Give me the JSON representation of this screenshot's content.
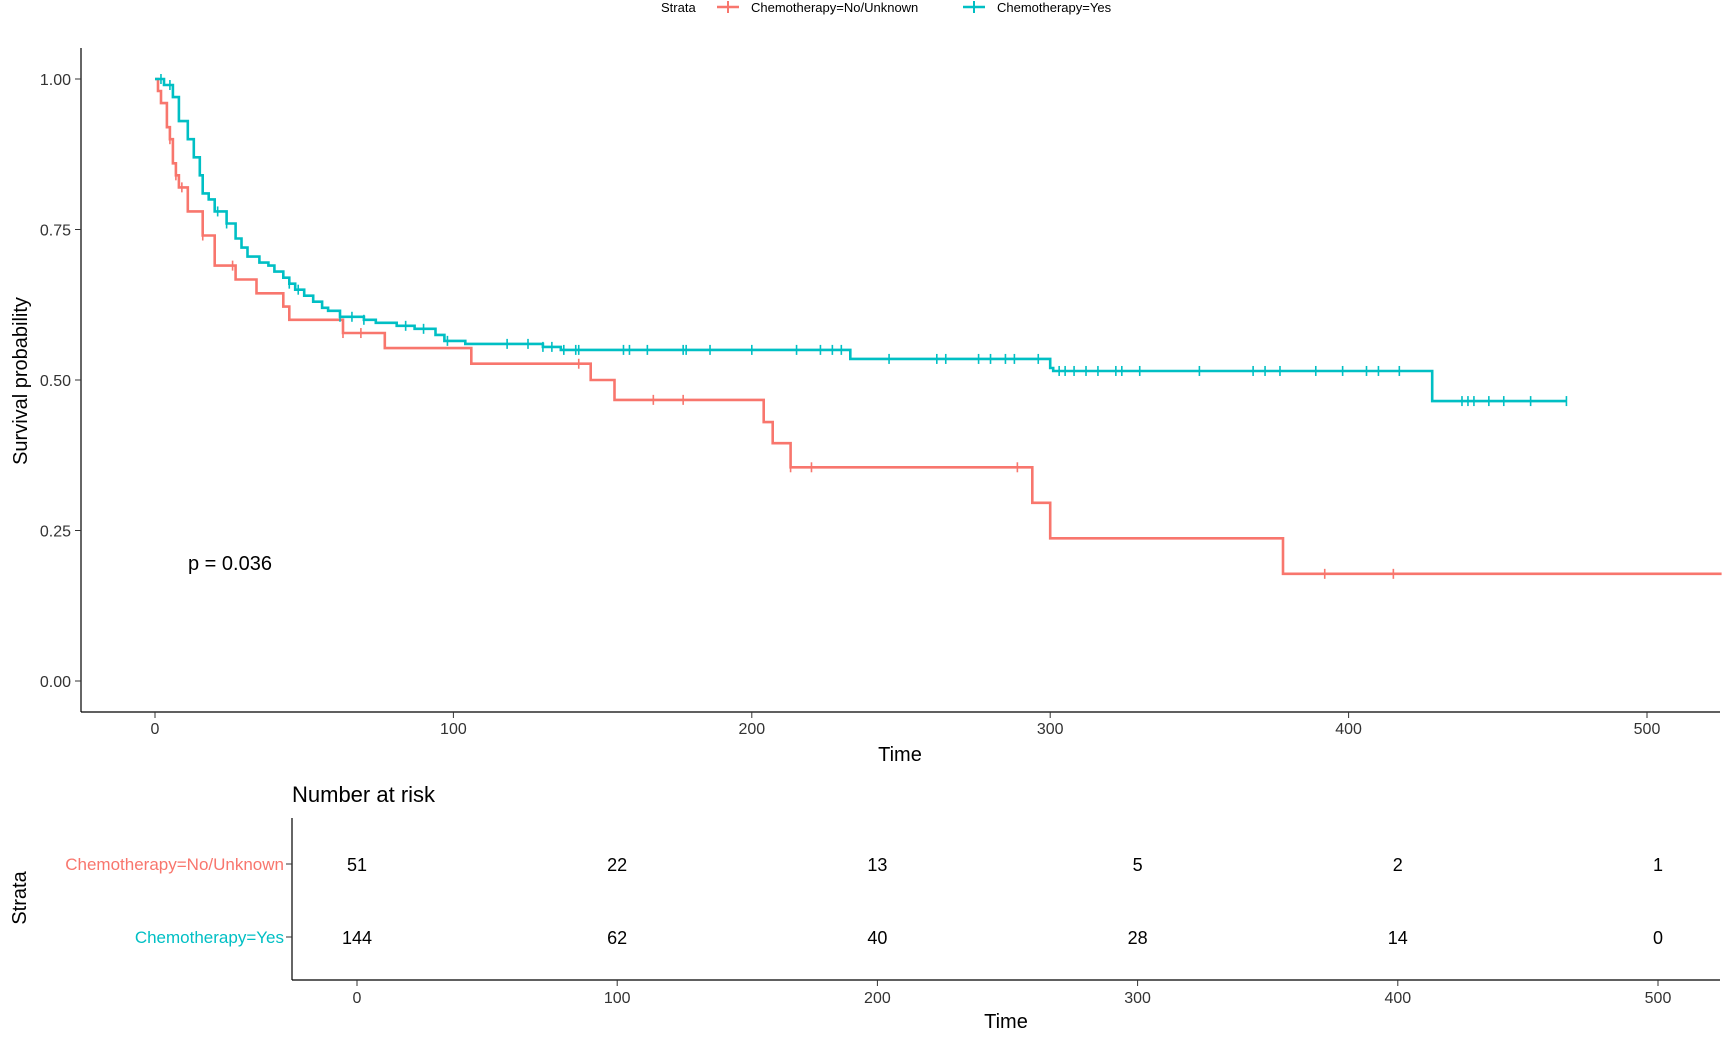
{
  "chart_data": {
    "type": "line",
    "subtype": "kaplan-meier",
    "legend": {
      "title": "Strata",
      "placement": "top-center",
      "entries": [
        "Chemotherapy=No/Unknown",
        "Chemotherapy=Yes"
      ]
    },
    "xlabel": "Time",
    "ylabel": "Survival probability",
    "xlim": [
      -25,
      525
    ],
    "ylim": [
      -0.05,
      1.05
    ],
    "x_ticks": [
      0,
      100,
      200,
      300,
      400,
      500
    ],
    "x_tick_labels": [
      "0",
      "100",
      "200",
      "300",
      "400",
      "500"
    ],
    "y_ticks": [
      0,
      0.25,
      0.5,
      0.75,
      1
    ],
    "y_tick_labels": [
      "0.00",
      "0.25",
      "0.50",
      "0.75",
      "1.00"
    ],
    "annotation": "p = 0.036",
    "series": [
      {
        "name": "Chemotherapy=No/Unknown",
        "color": "#F8766D",
        "steps": [
          [
            0,
            1.0
          ],
          [
            1,
            0.98
          ],
          [
            2,
            0.96
          ],
          [
            4,
            0.92
          ],
          [
            5,
            0.9
          ],
          [
            6,
            0.86
          ],
          [
            7,
            0.84
          ],
          [
            8,
            0.82
          ],
          [
            11,
            0.78
          ],
          [
            16,
            0.74
          ],
          [
            20,
            0.69
          ],
          [
            27,
            0.667
          ],
          [
            34,
            0.644
          ],
          [
            43,
            0.622
          ],
          [
            45,
            0.6
          ],
          [
            63,
            0.578
          ],
          [
            77,
            0.553
          ],
          [
            106,
            0.527
          ],
          [
            146,
            0.5
          ],
          [
            154,
            0.467
          ],
          [
            204,
            0.43
          ],
          [
            207,
            0.395
          ],
          [
            213,
            0.355
          ],
          [
            294,
            0.296
          ],
          [
            300,
            0.237
          ],
          [
            378,
            0.178
          ],
          [
            525,
            0.178
          ]
        ],
        "censor_times": [
          5,
          7,
          9,
          16,
          26,
          63,
          69,
          142,
          167,
          177,
          213,
          220,
          289,
          392,
          415
        ]
      },
      {
        "name": "Chemotherapy=Yes",
        "color": "#00BFC4",
        "steps": [
          [
            0,
            1.0
          ],
          [
            3,
            0.99
          ],
          [
            6,
            0.97
          ],
          [
            8,
            0.93
          ],
          [
            11,
            0.9
          ],
          [
            13,
            0.87
          ],
          [
            15,
            0.84
          ],
          [
            16,
            0.81
          ],
          [
            18,
            0.8
          ],
          [
            20,
            0.78
          ],
          [
            24,
            0.76
          ],
          [
            27,
            0.735
          ],
          [
            29,
            0.72
          ],
          [
            31,
            0.705
          ],
          [
            35,
            0.695
          ],
          [
            38,
            0.69
          ],
          [
            40,
            0.68
          ],
          [
            43,
            0.67
          ],
          [
            45,
            0.66
          ],
          [
            47,
            0.65
          ],
          [
            50,
            0.64
          ],
          [
            53,
            0.63
          ],
          [
            56,
            0.62
          ],
          [
            58,
            0.615
          ],
          [
            62,
            0.605
          ],
          [
            70,
            0.6
          ],
          [
            74,
            0.595
          ],
          [
            81,
            0.59
          ],
          [
            87,
            0.585
          ],
          [
            94,
            0.575
          ],
          [
            97,
            0.565
          ],
          [
            104,
            0.56
          ],
          [
            130,
            0.555
          ],
          [
            136,
            0.55
          ],
          [
            233,
            0.535
          ],
          [
            300,
            0.52
          ],
          [
            301,
            0.515
          ],
          [
            428,
            0.465
          ],
          [
            473,
            0.465
          ]
        ],
        "censor_times": [
          2,
          5,
          21,
          24,
          45,
          48,
          62,
          66,
          70,
          84,
          90,
          98,
          118,
          125,
          130,
          133,
          137,
          141,
          142,
          157,
          159,
          165,
          177,
          178,
          186,
          200,
          215,
          223,
          227,
          230,
          246,
          262,
          265,
          276,
          280,
          285,
          288,
          296,
          303,
          305,
          308,
          312,
          316,
          322,
          324,
          330,
          350,
          368,
          372,
          377,
          389,
          398,
          406,
          410,
          417,
          438,
          440,
          442,
          447,
          452,
          461,
          473
        ]
      }
    ],
    "risk_table": {
      "title": "Number at risk",
      "ylabel": "Strata",
      "xlabel": "Time",
      "times": [
        0,
        100,
        200,
        300,
        400,
        500
      ],
      "rows": [
        {
          "label": "Chemotherapy=No/Unknown",
          "color": "#F8766D",
          "counts": [
            "51",
            "22",
            "13",
            "5",
            "2",
            "1"
          ]
        },
        {
          "label": "Chemotherapy=Yes",
          "color": "#00BFC4",
          "counts": [
            "144",
            "62",
            "40",
            "28",
            "14",
            "0"
          ]
        }
      ]
    }
  }
}
